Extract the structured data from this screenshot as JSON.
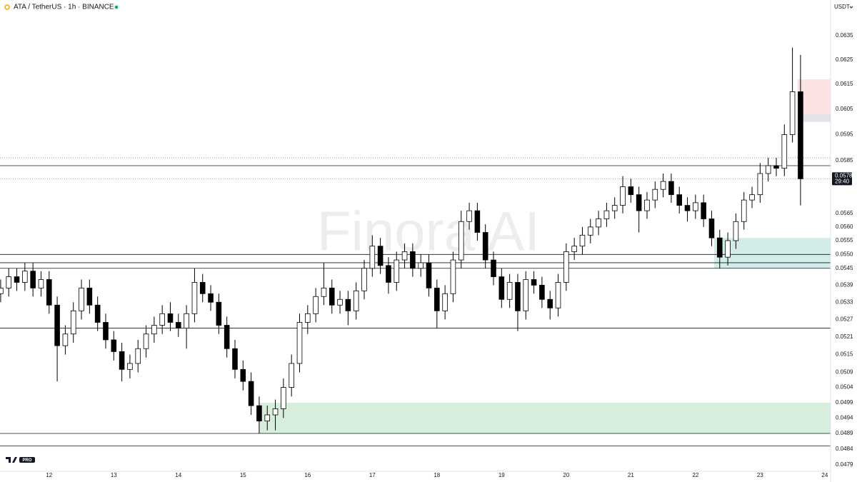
{
  "chart_data": {
    "type": "candlestick",
    "title": "ATA / TetherUS · 1h · BINANCE",
    "currency": "USDT",
    "watermark": "Finora AI",
    "badge": "PRO",
    "last_price": 0.0578,
    "countdown": "29:40",
    "log_scale": true,
    "ylim": [
      0.0477,
      0.065
    ],
    "xlim": [
      11.24,
      24.09
    ],
    "yticks": [
      0.0635,
      0.0625,
      0.0615,
      0.0605,
      0.0595,
      0.0585,
      0.0565,
      {
        "value": 0.056,
        "label": "0.0560"
      },
      0.0555,
      {
        "value": 0.055,
        "label": "0.0550"
      },
      0.0545,
      0.0539,
      0.0533,
      0.0527,
      0.0521,
      0.0515,
      0.0509,
      0.0504,
      0.0499,
      0.0494,
      0.0489,
      0.0484,
      0.0479
    ],
    "xticks": [
      12,
      13,
      14,
      15,
      16,
      17,
      18,
      19,
      20,
      21,
      22,
      23,
      24
    ],
    "up_color": "#ffffff",
    "down_color": "#000000",
    "wick_color": "#000000",
    "levels": [
      0.0583,
      0.055,
      0.0547,
      0.0545,
      0.0524,
      0.0489,
      0.0485
    ],
    "dotted_levels": [
      0.0586,
      0.0578
    ],
    "zones": [
      {
        "x0": 15.25,
        "y0": 0.0489,
        "y1": 0.0499,
        "color": "#d6eedb"
      },
      {
        "x0": 22.29,
        "y0": 0.0545,
        "y1": 0.0556,
        "color": "#d2ede8"
      },
      {
        "x0": 23.58,
        "y0": 0.0602,
        "y1": 0.0617,
        "color": "#fbe3e3"
      },
      {
        "x0": 23.58,
        "y0": 0.06,
        "y1": 0.0603,
        "color": "#e2e3e8"
      }
    ],
    "x": [
      11.25,
      11.375,
      11.5,
      11.625,
      11.75,
      11.875,
      12,
      12.125,
      12.25,
      12.375,
      12.5,
      12.625,
      12.75,
      12.875,
      13,
      13.125,
      13.25,
      13.375,
      13.5,
      13.625,
      13.75,
      13.875,
      14,
      14.125,
      14.25,
      14.375,
      14.5,
      14.625,
      14.75,
      14.875,
      15,
      15.125,
      15.25,
      15.375,
      15.5,
      15.625,
      15.75,
      15.875,
      16,
      16.125,
      16.25,
      16.375,
      16.5,
      16.625,
      16.75,
      16.875,
      17,
      17.125,
      17.25,
      17.375,
      17.5,
      17.625,
      17.75,
      17.875,
      18,
      18.125,
      18.25,
      18.375,
      18.5,
      18.625,
      18.75,
      18.875,
      19,
      19.125,
      19.25,
      19.375,
      19.5,
      19.625,
      19.75,
      19.875,
      20,
      20.125,
      20.25,
      20.375,
      20.5,
      20.625,
      20.75,
      20.875,
      21,
      21.125,
      21.25,
      21.375,
      21.5,
      21.625,
      21.75,
      21.875,
      22,
      22.125,
      22.25,
      22.375,
      22.5,
      22.625,
      22.75,
      22.875,
      23,
      23.125,
      23.25,
      23.375,
      23.5,
      23.625
    ],
    "open": [
      0.0536,
      0.0538,
      0.0542,
      0.054,
      0.0544,
      0.0538,
      0.0541,
      0.0532,
      0.0518,
      0.0522,
      0.053,
      0.0538,
      0.0532,
      0.0526,
      0.052,
      0.0516,
      0.051,
      0.0512,
      0.0517,
      0.0522,
      0.0525,
      0.0529,
      0.0526,
      0.0524,
      0.0529,
      0.054,
      0.0536,
      0.0533,
      0.0525,
      0.0517,
      0.051,
      0.0506,
      0.0498,
      0.0493,
      0.0495,
      0.0497,
      0.0504,
      0.0512,
      0.0526,
      0.0529,
      0.0535,
      0.0538,
      0.0532,
      0.0534,
      0.053,
      0.0537,
      0.0545,
      0.0553,
      0.0546,
      0.054,
      0.0548,
      0.0551,
      0.0545,
      0.0547,
      0.0538,
      0.053,
      0.0536,
      0.0548,
      0.0562,
      0.0566,
      0.0558,
      0.0548,
      0.0542,
      0.0534,
      0.054,
      0.053,
      0.0541,
      0.0539,
      0.0534,
      0.0531,
      0.054,
      0.0551,
      0.0553,
      0.0557,
      0.056,
      0.0563,
      0.0566,
      0.0568,
      0.0575,
      0.0572,
      0.0566,
      0.057,
      0.0574,
      0.0577,
      0.0572,
      0.0568,
      0.0566,
      0.0569,
      0.0563,
      0.0556,
      0.0549,
      0.0555,
      0.0562,
      0.057,
      0.0572,
      0.058,
      0.0583,
      0.0582,
      0.0595,
      0.0612
    ],
    "high": [
      0.0541,
      0.0545,
      0.0545,
      0.0547,
      0.0547,
      0.0544,
      0.0544,
      0.0535,
      0.0525,
      0.0533,
      0.0541,
      0.0541,
      0.0535,
      0.0529,
      0.0523,
      0.0519,
      0.0515,
      0.052,
      0.0525,
      0.0528,
      0.0532,
      0.0533,
      0.0529,
      0.0532,
      0.0545,
      0.0543,
      0.0539,
      0.0536,
      0.0528,
      0.052,
      0.0513,
      0.0509,
      0.0501,
      0.0498,
      0.05,
      0.0507,
      0.0515,
      0.0529,
      0.0532,
      0.0538,
      0.0547,
      0.0541,
      0.0537,
      0.0537,
      0.054,
      0.0548,
      0.0557,
      0.0556,
      0.0549,
      0.0551,
      0.0554,
      0.0554,
      0.055,
      0.055,
      0.0541,
      0.0539,
      0.0551,
      0.0566,
      0.0569,
      0.0569,
      0.0561,
      0.0551,
      0.0545,
      0.0543,
      0.0543,
      0.0544,
      0.0544,
      0.0542,
      0.0537,
      0.0543,
      0.0554,
      0.0556,
      0.056,
      0.0563,
      0.0566,
      0.0569,
      0.0571,
      0.0579,
      0.0578,
      0.0575,
      0.0573,
      0.0577,
      0.058,
      0.058,
      0.0575,
      0.0571,
      0.0572,
      0.0572,
      0.0566,
      0.0559,
      0.0558,
      0.0565,
      0.0573,
      0.0575,
      0.0584,
      0.0586,
      0.0586,
      0.0599,
      0.063,
      0.0627
    ],
    "low": [
      0.0533,
      0.0535,
      0.0537,
      0.0537,
      0.0535,
      0.0535,
      0.0529,
      0.0506,
      0.0515,
      0.0519,
      0.0527,
      0.0529,
      0.0523,
      0.0517,
      0.0513,
      0.0506,
      0.0507,
      0.0509,
      0.0514,
      0.0519,
      0.0522,
      0.0523,
      0.0521,
      0.0517,
      0.0526,
      0.0533,
      0.053,
      0.0522,
      0.0514,
      0.0507,
      0.0503,
      0.0495,
      0.0489,
      0.049,
      0.049,
      0.0494,
      0.0501,
      0.0509,
      0.0522,
      0.0526,
      0.0532,
      0.0529,
      0.0529,
      0.0525,
      0.0527,
      0.0534,
      0.0542,
      0.0543,
      0.0536,
      0.0537,
      0.0545,
      0.0542,
      0.0542,
      0.0535,
      0.0524,
      0.0527,
      0.0533,
      0.0545,
      0.0559,
      0.0555,
      0.0545,
      0.0539,
      0.0531,
      0.0531,
      0.0523,
      0.0527,
      0.0536,
      0.0531,
      0.0527,
      0.0528,
      0.0537,
      0.0548,
      0.055,
      0.0554,
      0.0557,
      0.056,
      0.0563,
      0.0565,
      0.0569,
      0.0558,
      0.0563,
      0.0567,
      0.0571,
      0.0569,
      0.0565,
      0.0562,
      0.0563,
      0.056,
      0.0553,
      0.0545,
      0.0546,
      0.0552,
      0.0559,
      0.0567,
      0.0569,
      0.0577,
      0.0579,
      0.0579,
      0.0592,
      0.0568
    ],
    "close": [
      0.0538,
      0.0542,
      0.054,
      0.0544,
      0.0538,
      0.0541,
      0.0532,
      0.0518,
      0.0522,
      0.053,
      0.0538,
      0.0532,
      0.0526,
      0.052,
      0.0516,
      0.051,
      0.0512,
      0.0517,
      0.0522,
      0.0525,
      0.0529,
      0.0526,
      0.0524,
      0.0529,
      0.054,
      0.0536,
      0.0533,
      0.0525,
      0.0517,
      0.051,
      0.0506,
      0.0498,
      0.0493,
      0.0495,
      0.0497,
      0.0504,
      0.0512,
      0.0526,
      0.0529,
      0.0535,
      0.0538,
      0.0532,
      0.0534,
      0.053,
      0.0537,
      0.0545,
      0.0553,
      0.0546,
      0.054,
      0.0548,
      0.0551,
      0.0545,
      0.0547,
      0.0538,
      0.053,
      0.0536,
      0.0548,
      0.0562,
      0.0566,
      0.0558,
      0.0548,
      0.0542,
      0.0534,
      0.054,
      0.053,
      0.0541,
      0.0539,
      0.0534,
      0.0531,
      0.054,
      0.0551,
      0.0553,
      0.0557,
      0.056,
      0.0563,
      0.0566,
      0.0568,
      0.0575,
      0.0572,
      0.0566,
      0.057,
      0.0574,
      0.0577,
      0.0572,
      0.0568,
      0.0566,
      0.0569,
      0.0563,
      0.0556,
      0.0549,
      0.0555,
      0.0562,
      0.057,
      0.0572,
      0.058,
      0.0583,
      0.0582,
      0.0595,
      0.0612,
      0.0578
    ]
  }
}
